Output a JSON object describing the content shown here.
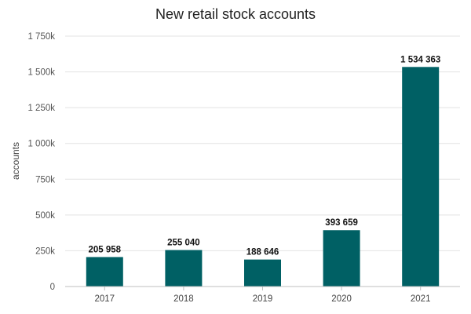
{
  "chart_data": {
    "type": "bar",
    "title": "New retail stock accounts",
    "xlabel": "",
    "ylabel": "accounts",
    "categories": [
      "2017",
      "2018",
      "2019",
      "2020",
      "2021"
    ],
    "values": [
      205958,
      255040,
      188646,
      393659,
      1534363
    ],
    "value_labels": [
      "205 958",
      "255 040",
      "188 646",
      "393 659",
      "1 534 363"
    ],
    "ylim": [
      0,
      1750000
    ],
    "yticks": [
      0,
      250000,
      500000,
      750000,
      1000000,
      1250000,
      1500000,
      1750000
    ],
    "ytick_labels": [
      "0",
      "250k",
      "500k",
      "750k",
      "1 000k",
      "1 250k",
      "1 500k",
      "1 750k"
    ],
    "grid": true,
    "legend": "none",
    "colors": {
      "bar": "#006064"
    }
  }
}
